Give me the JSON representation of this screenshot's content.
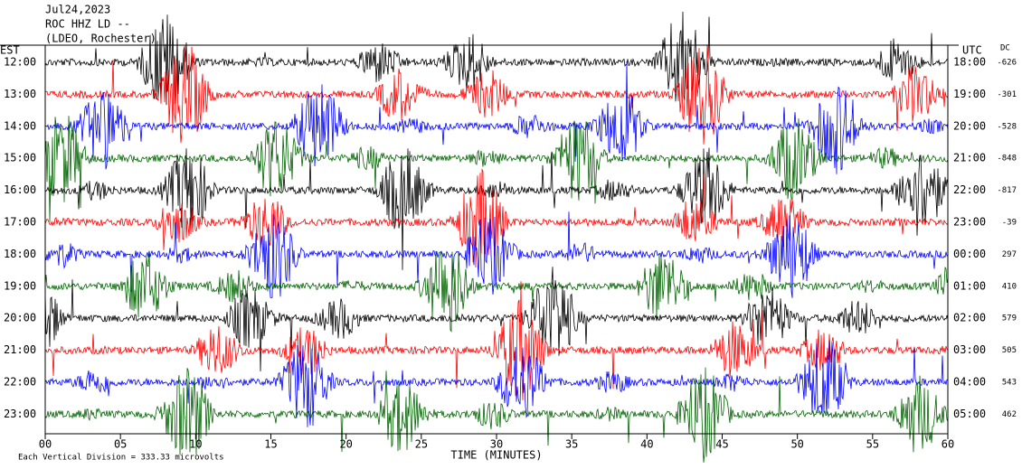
{
  "header": {
    "date": "Jul24,2023",
    "station": "ROC HHZ LD --",
    "location": "(LDEO, Rochester)"
  },
  "left_axis_title": "EST",
  "right_axis_title": "UTC",
  "dc_title": "DC",
  "rows": [
    {
      "est": "12:00",
      "utc": "18:00",
      "dc": -626
    },
    {
      "est": "13:00",
      "utc": "19:00",
      "dc": -301
    },
    {
      "est": "14:00",
      "utc": "20:00",
      "dc": -528
    },
    {
      "est": "15:00",
      "utc": "21:00",
      "dc": -848
    },
    {
      "est": "16:00",
      "utc": "22:00",
      "dc": -817
    },
    {
      "est": "17:00",
      "utc": "23:00",
      "dc": -39
    },
    {
      "est": "18:00",
      "utc": "00:00",
      "dc": 297
    },
    {
      "est": "19:00",
      "utc": "01:00",
      "dc": 410
    },
    {
      "est": "20:00",
      "utc": "02:00",
      "dc": 579
    },
    {
      "est": "21:00",
      "utc": "03:00",
      "dc": 505
    },
    {
      "est": "22:00",
      "utc": "04:00",
      "dc": 543
    },
    {
      "est": "23:00",
      "utc": "05:00",
      "dc": 462
    }
  ],
  "x_axis": {
    "title": "TIME (MINUTES)",
    "lim": [
      0,
      60
    ],
    "ticks": [
      {
        "value": 0,
        "label": "00"
      },
      {
        "value": 5,
        "label": "05"
      },
      10,
      15,
      20,
      25,
      30,
      35,
      40,
      45,
      50,
      55,
      60
    ]
  },
  "footer": "Each Vertical Division =  333.33 microvolts"
}
